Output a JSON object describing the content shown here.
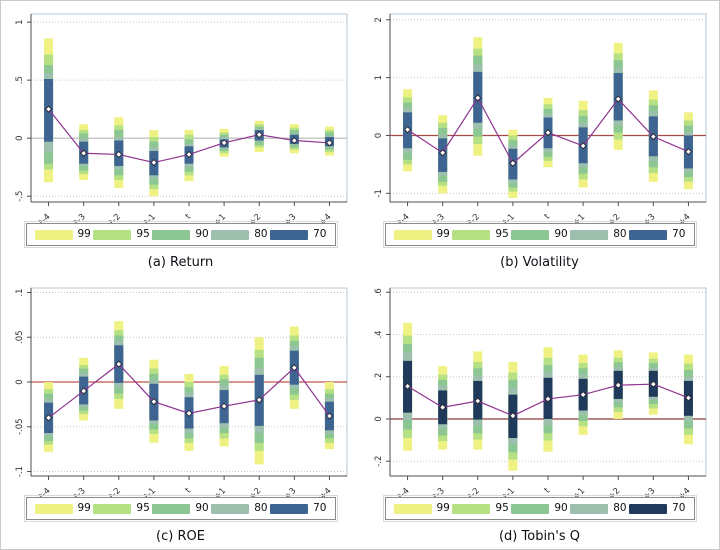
{
  "figure": {
    "background": "#ffffff",
    "border_color": "#c9c9c9"
  },
  "legend": {
    "labels": [
      "99",
      "95",
      "90",
      "80",
      "70"
    ]
  },
  "colors": {
    "band_99": "#eff283",
    "band_95": "#b5e084",
    "band_90": "#8cc693",
    "band_80": "#9dbfad",
    "band_70_steel": "#3e6591",
    "band_70_navy": "#203a5c",
    "line": "#8e3390",
    "marker_fill": "#ffffff",
    "marker_stroke": "#2a2a3a",
    "grid": "#c8c8c8",
    "axis": "#4d4d4d",
    "tick_text": "#333333",
    "plot_border": "#b7c9d9"
  },
  "chart_data": [
    {
      "type": "line",
      "id": "a",
      "caption": "(a) Return",
      "title": "",
      "xlabel": "",
      "ylabel": "",
      "legend_position": "bottom",
      "grid": true,
      "categories": [
        "t-4",
        "t-3",
        "t-2",
        "t-1",
        "t",
        "t+1",
        "t+2",
        "t+3",
        "t+4"
      ],
      "ylim": [
        -0.55,
        1.07
      ],
      "yticks": [
        1,
        0.5,
        0,
        -0.5
      ],
      "ytick_labels": [
        "1",
        ".5",
        "0",
        "-.5"
      ],
      "zero_line_color": "#b9b9b9",
      "band70_color_key": "band_70_steel",
      "points": [
        0.25,
        -0.13,
        -0.14,
        -0.21,
        -0.14,
        -0.04,
        0.03,
        -0.02,
        -0.04
      ],
      "bands": {
        "99": [
          [
            -0.38,
            0.86
          ],
          [
            -0.36,
            0.12
          ],
          [
            -0.43,
            0.18
          ],
          [
            -0.5,
            0.07
          ],
          [
            -0.37,
            0.07
          ],
          [
            -0.16,
            0.08
          ],
          [
            -0.12,
            0.15
          ],
          [
            -0.13,
            0.12
          ],
          [
            -0.15,
            0.1
          ]
        ],
        "95": [
          [
            -0.27,
            0.72
          ],
          [
            -0.31,
            0.07
          ],
          [
            -0.36,
            0.11
          ],
          [
            -0.44,
            0.01
          ],
          [
            -0.32,
            0.03
          ],
          [
            -0.13,
            0.05
          ],
          [
            -0.08,
            0.12
          ],
          [
            -0.1,
            0.09
          ],
          [
            -0.12,
            0.07
          ]
        ],
        "90": [
          [
            -0.22,
            0.63
          ],
          [
            -0.28,
            0.04
          ],
          [
            -0.32,
            0.07
          ],
          [
            -0.4,
            -0.03
          ],
          [
            -0.29,
            -0.01
          ],
          [
            -0.11,
            0.03
          ],
          [
            -0.06,
            0.1
          ],
          [
            -0.08,
            0.07
          ],
          [
            -0.1,
            0.05
          ]
        ],
        "80": [
          [
            -0.12,
            0.56
          ],
          [
            -0.24,
            0.0
          ],
          [
            -0.27,
            0.01
          ],
          [
            -0.35,
            -0.08
          ],
          [
            -0.25,
            -0.05
          ],
          [
            -0.09,
            0.01
          ],
          [
            -0.03,
            0.08
          ],
          [
            -0.06,
            0.04
          ],
          [
            -0.08,
            0.02
          ]
        ],
        "70": [
          [
            -0.03,
            0.51
          ],
          [
            -0.22,
            -0.03
          ],
          [
            -0.24,
            -0.02
          ],
          [
            -0.32,
            -0.11
          ],
          [
            -0.22,
            -0.07
          ],
          [
            -0.08,
            -0.01
          ],
          [
            -0.02,
            0.07
          ],
          [
            -0.05,
            0.03
          ],
          [
            -0.07,
            0.01
          ]
        ]
      }
    },
    {
      "type": "line",
      "id": "b",
      "caption": "(b) Volatility",
      "title": "",
      "xlabel": "",
      "ylabel": "",
      "legend_position": "bottom",
      "grid": true,
      "categories": [
        "t-4",
        "t-3",
        "t-2",
        "t-1",
        "t",
        "t+1",
        "t+2",
        "t+3",
        "t+4"
      ],
      "ylim": [
        -1.15,
        2.1
      ],
      "yticks": [
        2,
        1,
        0,
        -1
      ],
      "ytick_labels": [
        "2",
        "1",
        "0",
        "-1"
      ],
      "zero_line_color": "#a64a45",
      "band70_color_key": "band_70_steel",
      "points": [
        0.1,
        -0.3,
        0.65,
        -0.48,
        0.05,
        -0.18,
        0.63,
        -0.02,
        -0.28
      ],
      "bands": {
        "99": [
          [
            -0.62,
            0.8
          ],
          [
            -1.0,
            0.35
          ],
          [
            -0.35,
            1.7
          ],
          [
            -1.08,
            0.1
          ],
          [
            -0.55,
            0.65
          ],
          [
            -0.9,
            0.6
          ],
          [
            -0.25,
            1.6
          ],
          [
            -0.8,
            0.78
          ],
          [
            -0.93,
            0.4
          ]
        ],
        "95": [
          [
            -0.5,
            0.66
          ],
          [
            -0.87,
            0.22
          ],
          [
            -0.15,
            1.5
          ],
          [
            -0.97,
            0.0
          ],
          [
            -0.44,
            0.54
          ],
          [
            -0.76,
            0.44
          ],
          [
            -0.07,
            1.42
          ],
          [
            -0.65,
            0.62
          ],
          [
            -0.8,
            0.26
          ]
        ],
        "90": [
          [
            -0.42,
            0.57
          ],
          [
            -0.8,
            0.13
          ],
          [
            -0.02,
            1.38
          ],
          [
            -0.9,
            -0.08
          ],
          [
            -0.37,
            0.46
          ],
          [
            -0.66,
            0.34
          ],
          [
            0.05,
            1.3
          ],
          [
            -0.55,
            0.52
          ],
          [
            -0.72,
            0.17
          ]
        ],
        "80": [
          [
            -0.3,
            0.47
          ],
          [
            -0.7,
            0.02
          ],
          [
            0.12,
            1.22
          ],
          [
            -0.82,
            -0.17
          ],
          [
            -0.28,
            0.37
          ],
          [
            -0.55,
            0.22
          ],
          [
            0.17,
            1.17
          ],
          [
            -0.44,
            0.42
          ],
          [
            -0.63,
            0.07
          ]
        ],
        "70": [
          [
            -0.22,
            0.4
          ],
          [
            -0.63,
            -0.05
          ],
          [
            0.22,
            1.1
          ],
          [
            -0.76,
            -0.23
          ],
          [
            -0.22,
            0.31
          ],
          [
            -0.48,
            0.14
          ],
          [
            0.26,
            1.08
          ],
          [
            -0.36,
            0.33
          ],
          [
            -0.57,
            0.0
          ]
        ]
      }
    },
    {
      "type": "line",
      "id": "c",
      "caption": "(c) ROE",
      "title": "",
      "xlabel": "",
      "ylabel": "",
      "legend_position": "bottom",
      "grid": true,
      "categories": [
        "t-4",
        "t-3",
        "t-2",
        "t-1",
        "t",
        "t+1",
        "t+2",
        "t+3",
        "t+4"
      ],
      "ylim": [
        -0.105,
        0.105
      ],
      "yticks": [
        0.1,
        0.05,
        0,
        -0.05,
        -0.1
      ],
      "ytick_labels": [
        ".1",
        ".05",
        "0",
        "-.05",
        "-.1"
      ],
      "zero_line_color": "#c0504d",
      "band70_color_key": "band_70_steel",
      "points": [
        -0.04,
        -0.01,
        0.02,
        -0.022,
        -0.035,
        -0.027,
        -0.02,
        0.016,
        -0.038
      ],
      "bands": {
        "99": [
          [
            -0.078,
            0.0
          ],
          [
            -0.043,
            0.027
          ],
          [
            -0.03,
            0.068
          ],
          [
            -0.068,
            0.025
          ],
          [
            -0.077,
            0.009
          ],
          [
            -0.072,
            0.018
          ],
          [
            -0.092,
            0.05
          ],
          [
            -0.03,
            0.062
          ],
          [
            -0.075,
            0.0
          ]
        ],
        "95": [
          [
            -0.07,
            -0.008
          ],
          [
            -0.036,
            0.019
          ],
          [
            -0.019,
            0.058
          ],
          [
            -0.058,
            0.015
          ],
          [
            -0.068,
            0.0
          ],
          [
            -0.063,
            0.008
          ],
          [
            -0.077,
            0.036
          ],
          [
            -0.02,
            0.052
          ],
          [
            -0.068,
            -0.008
          ]
        ],
        "90": [
          [
            -0.066,
            -0.013
          ],
          [
            -0.032,
            0.015
          ],
          [
            -0.013,
            0.052
          ],
          [
            -0.053,
            0.009
          ],
          [
            -0.063,
            -0.006
          ],
          [
            -0.057,
            0.003
          ],
          [
            -0.068,
            0.027
          ],
          [
            -0.014,
            0.046
          ],
          [
            -0.063,
            -0.013
          ]
        ],
        "80": [
          [
            -0.061,
            -0.019
          ],
          [
            -0.028,
            0.01
          ],
          [
            -0.006,
            0.046
          ],
          [
            -0.047,
            0.002
          ],
          [
            -0.057,
            -0.012
          ],
          [
            -0.051,
            -0.004
          ],
          [
            -0.057,
            0.016
          ],
          [
            -0.007,
            0.04
          ],
          [
            -0.058,
            -0.018
          ]
        ],
        "70": [
          [
            -0.057,
            -0.023
          ],
          [
            -0.025,
            0.006
          ],
          [
            -0.001,
            0.041
          ],
          [
            -0.043,
            -0.002
          ],
          [
            -0.052,
            -0.017
          ],
          [
            -0.046,
            -0.009
          ],
          [
            -0.049,
            0.008
          ],
          [
            -0.003,
            0.035
          ],
          [
            -0.054,
            -0.022
          ]
        ]
      }
    },
    {
      "type": "line",
      "id": "d",
      "caption": "(d) Tobin's Q",
      "title": "",
      "xlabel": "",
      "ylabel": "",
      "legend_position": "bottom",
      "grid": true,
      "categories": [
        "t-4",
        "t-3",
        "t-2",
        "t-1",
        "t",
        "t+1",
        "t+2",
        "t+3",
        "t+4"
      ],
      "ylim": [
        -0.27,
        0.62
      ],
      "yticks": [
        0.6,
        0.4,
        0.2,
        0,
        -0.2
      ],
      "ytick_labels": [
        ".6",
        ".4",
        ".2",
        "0",
        "-.2"
      ],
      "zero_line_color": "#8e3a3a",
      "band70_color_key": "band_70_navy",
      "points": [
        0.155,
        0.055,
        0.085,
        0.015,
        0.095,
        0.115,
        0.16,
        0.165,
        0.1
      ],
      "bands": {
        "99": [
          [
            -0.15,
            0.455
          ],
          [
            -0.145,
            0.25
          ],
          [
            -0.145,
            0.32
          ],
          [
            -0.245,
            0.27
          ],
          [
            -0.155,
            0.34
          ],
          [
            -0.075,
            0.305
          ],
          [
            0.0,
            0.325
          ],
          [
            0.02,
            0.315
          ],
          [
            -0.12,
            0.305
          ]
        ],
        "95": [
          [
            -0.09,
            0.395
          ],
          [
            -0.105,
            0.21
          ],
          [
            -0.098,
            0.27
          ],
          [
            -0.192,
            0.22
          ],
          [
            -0.102,
            0.29
          ],
          [
            -0.035,
            0.265
          ],
          [
            0.033,
            0.29
          ],
          [
            0.05,
            0.285
          ],
          [
            -0.075,
            0.262
          ]
        ],
        "90": [
          [
            -0.05,
            0.355
          ],
          [
            -0.078,
            0.185
          ],
          [
            -0.068,
            0.24
          ],
          [
            -0.158,
            0.185
          ],
          [
            -0.068,
            0.255
          ],
          [
            -0.01,
            0.24
          ],
          [
            0.055,
            0.268
          ],
          [
            0.07,
            0.265
          ],
          [
            -0.045,
            0.232
          ]
        ],
        "80": [
          [
            -0.005,
            0.315
          ],
          [
            -0.048,
            0.158
          ],
          [
            -0.032,
            0.205
          ],
          [
            -0.12,
            0.148
          ],
          [
            -0.03,
            0.222
          ],
          [
            0.02,
            0.212
          ],
          [
            0.078,
            0.245
          ],
          [
            0.09,
            0.242
          ],
          [
            -0.012,
            0.2
          ]
        ],
        "70": [
          [
            0.03,
            0.275
          ],
          [
            -0.025,
            0.135
          ],
          [
            -0.003,
            0.18
          ],
          [
            -0.09,
            0.115
          ],
          [
            0.0,
            0.195
          ],
          [
            0.04,
            0.19
          ],
          [
            0.095,
            0.228
          ],
          [
            0.105,
            0.228
          ],
          [
            0.015,
            0.18
          ]
        ]
      }
    }
  ]
}
